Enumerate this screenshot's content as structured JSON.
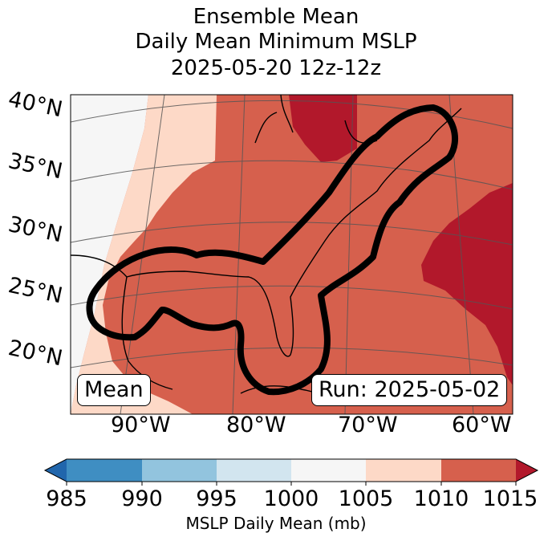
{
  "title": {
    "line1": "Ensemble Mean",
    "line2": "Daily Mean Minimum MSLP",
    "line3": "2025-05-20 12z-12z"
  },
  "map": {
    "lat_labels": [
      "40°N",
      "35°N",
      "30°N",
      "25°N",
      "20°N"
    ],
    "lon_labels": [
      "90°W",
      "80°W",
      "70°W",
      "60°W"
    ],
    "mean_box": "Mean",
    "run_box": "Run: 2025-05-02",
    "colors": {
      "c985": "#3f8ec2",
      "c990": "#92c4de",
      "c995": "#d2e5ef",
      "c1000": "#f6f6f6",
      "c1005": "#fdd9c7",
      "c1010": "#d6604d",
      "c1015": "#b2182b",
      "under": "#2166ac",
      "over": "#b2182b"
    }
  },
  "colorbar": {
    "ticks": [
      "985",
      "990",
      "995",
      "1000",
      "1005",
      "1010",
      "1015"
    ],
    "label": "MSLP Daily Mean (mb)"
  }
}
